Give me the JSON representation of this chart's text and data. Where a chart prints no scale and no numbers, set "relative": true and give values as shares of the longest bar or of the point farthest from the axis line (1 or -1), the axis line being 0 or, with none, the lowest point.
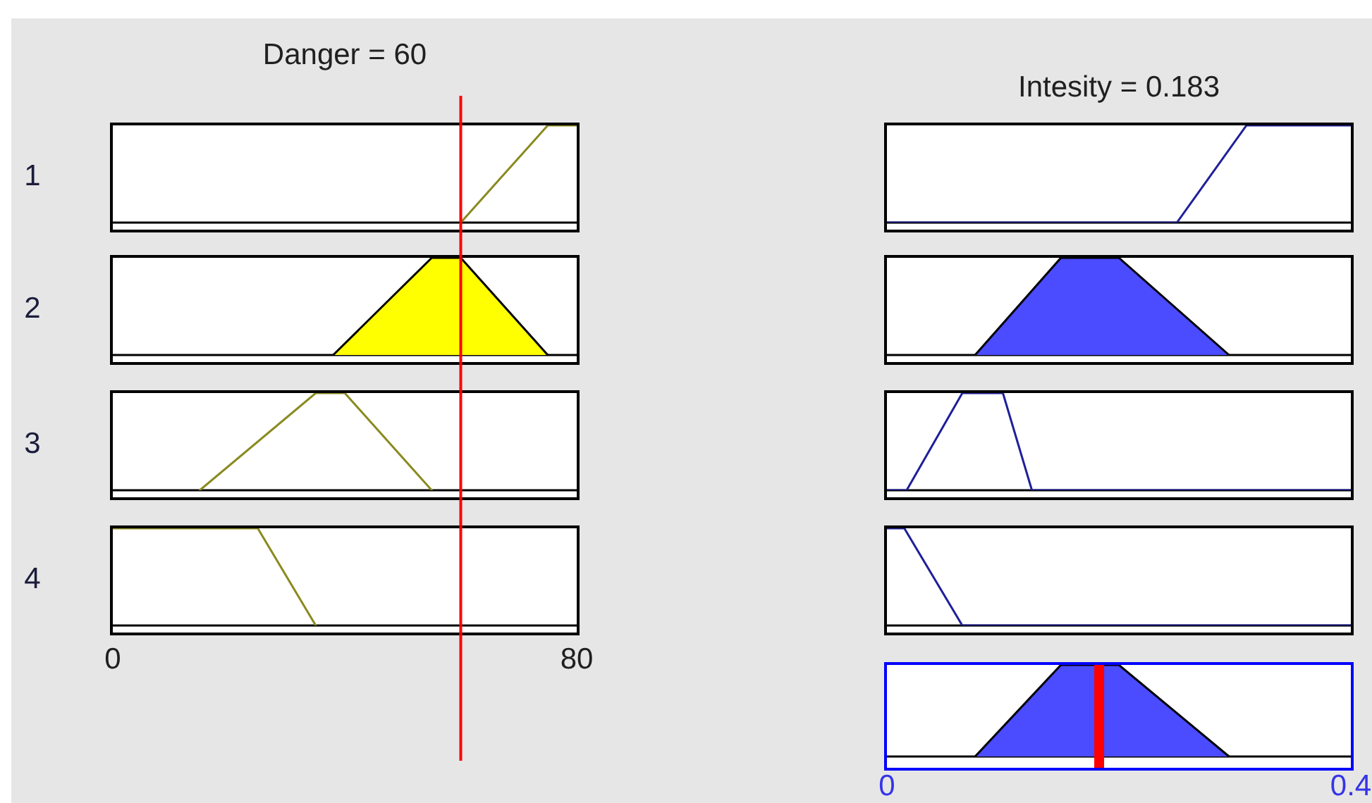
{
  "chart_data": [
    {
      "type": "line",
      "title": "Danger = 60",
      "ylabel": "1",
      "x": [
        60,
        75,
        80
      ],
      "values": [
        0,
        1,
        1
      ],
      "color": "#8a8a20",
      "xlim": [
        0,
        80
      ],
      "relative": true,
      "tick_labels": false,
      "ref_lines": [
        {
          "axis": "x",
          "value": 60,
          "color": "#ff0000"
        }
      ]
    },
    {
      "type": "line",
      "title": "Intesity = 0.183",
      "x": [
        0,
        0.25,
        0.31,
        0.4
      ],
      "values": [
        0,
        0,
        1,
        1
      ],
      "color": "#1f1f9a",
      "xlim": [
        0,
        0.4
      ],
      "relative": true,
      "tick_labels": false
    },
    {
      "type": "area",
      "ylabel": "2",
      "x": [
        38,
        55,
        60,
        75
      ],
      "values": [
        0,
        1,
        1,
        0
      ],
      "color": "#ffff00",
      "xlim": [
        0,
        80
      ],
      "relative": true,
      "tick_labels": false,
      "ref_lines": [
        {
          "axis": "x",
          "value": 60,
          "color": "#ff0000"
        }
      ]
    },
    {
      "type": "area",
      "x": [
        0.076,
        0.15,
        0.2,
        0.295
      ],
      "values": [
        0,
        1,
        1,
        0
      ],
      "color": "#4b4bff",
      "xlim": [
        0,
        0.4
      ],
      "relative": true,
      "tick_labels": false
    },
    {
      "type": "line",
      "ylabel": "3",
      "x": [
        15,
        35,
        40,
        55
      ],
      "values": [
        0,
        1,
        1,
        0
      ],
      "color": "#8a8a20",
      "xlim": [
        0,
        80
      ],
      "relative": true,
      "tick_labels": false,
      "ref_lines": [
        {
          "axis": "x",
          "value": 60,
          "color": "#ff0000"
        }
      ]
    },
    {
      "type": "line",
      "x": [
        0,
        0.017,
        0.065,
        0.1,
        0.125,
        0.4
      ],
      "values": [
        0,
        0,
        1,
        1,
        0,
        0
      ],
      "color": "#1f1f9a",
      "xlim": [
        0,
        0.4
      ],
      "relative": true,
      "tick_labels": false
    },
    {
      "type": "line",
      "ylabel": "4",
      "x": [
        0,
        25,
        35
      ],
      "values": [
        1,
        1,
        0
      ],
      "color": "#8a8a20",
      "xlim": [
        0,
        80
      ],
      "xticks": [
        0,
        80
      ],
      "relative": true,
      "tick_labels": "x",
      "ref_lines": [
        {
          "axis": "x",
          "value": 60,
          "color": "#ff0000"
        }
      ]
    },
    {
      "type": "line",
      "x": [
        0,
        0.015,
        0.065,
        0.4
      ],
      "values": [
        1,
        1,
        0,
        0
      ],
      "color": "#1f1f9a",
      "xlim": [
        0,
        0.4
      ],
      "relative": true,
      "tick_labels": false
    },
    {
      "type": "area",
      "x": [
        0.076,
        0.15,
        0.2,
        0.295
      ],
      "values": [
        0,
        1,
        1,
        0
      ],
      "color": "#4b4bff",
      "xlim": [
        0,
        0.4
      ],
      "xticks": [
        0,
        0.4
      ],
      "relative": true,
      "tick_labels": "x",
      "ref_lines": [
        {
          "axis": "x",
          "value": 0.183,
          "color": "#ff0000"
        }
      ]
    }
  ]
}
